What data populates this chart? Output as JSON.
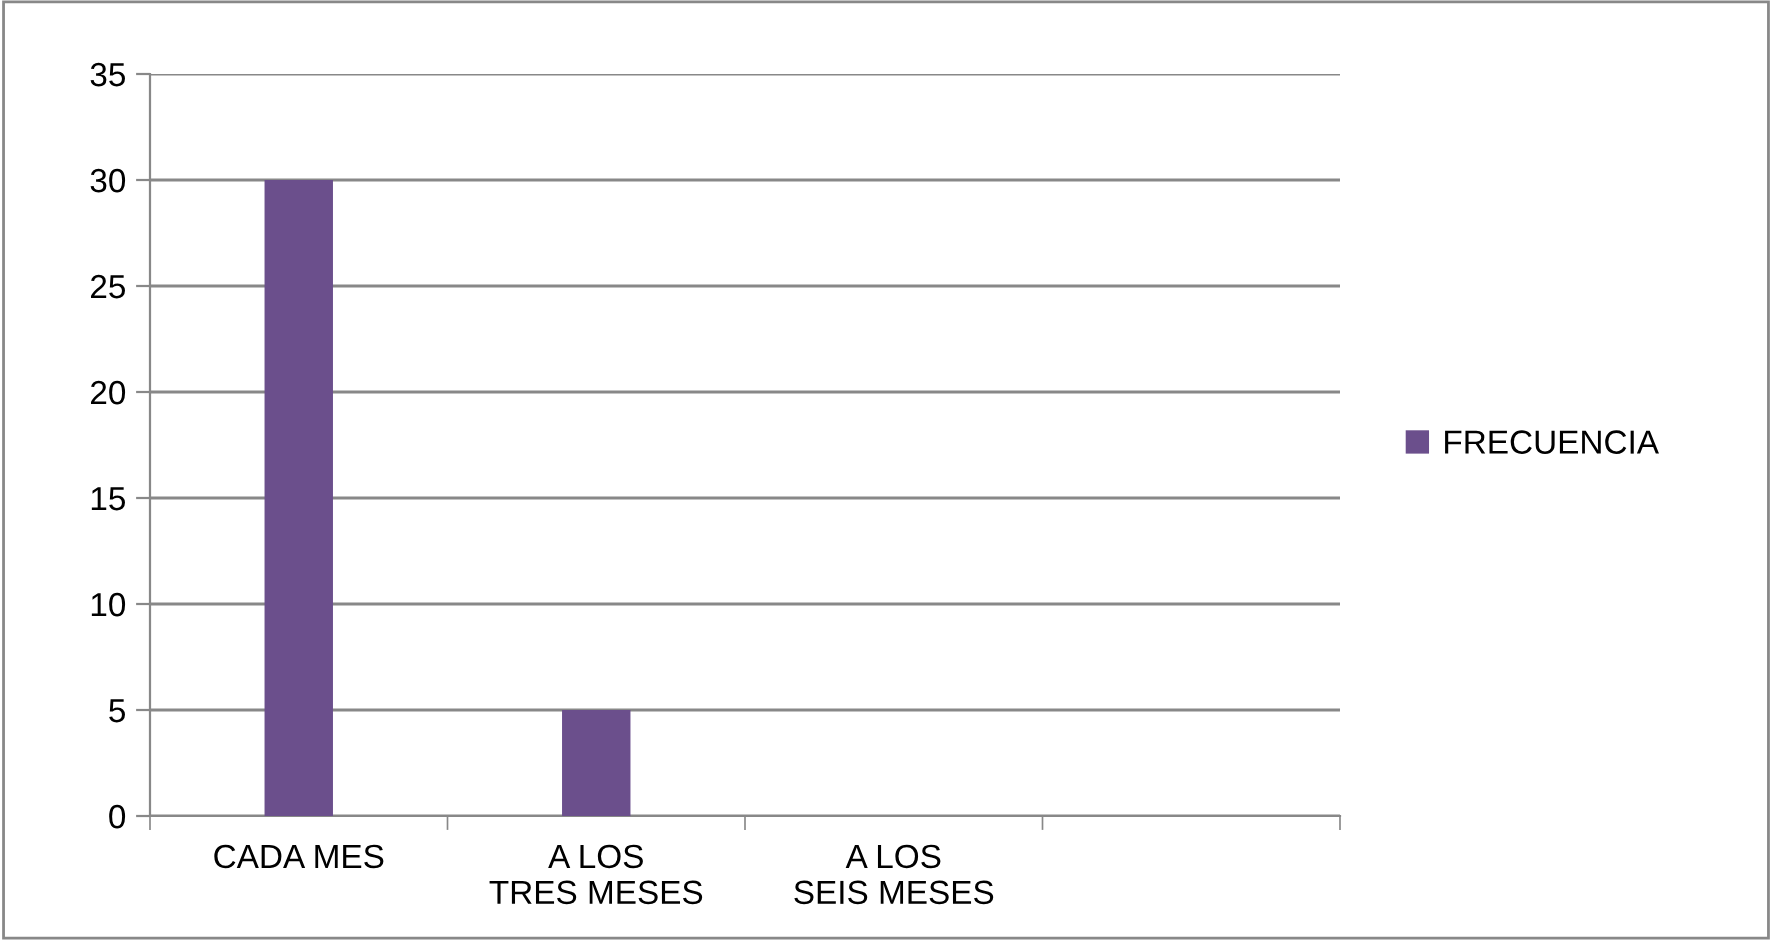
{
  "chart_data": {
    "type": "bar",
    "categories": [
      "CADA MES",
      "A LOS TRES MESES",
      "A LOS SEIS MESES",
      null
    ],
    "series": [
      {
        "name": "FRECUENCIA",
        "color": "#6b4f8c",
        "values": [
          30,
          5,
          null,
          null
        ]
      }
    ],
    "ylim": [
      0,
      35
    ],
    "yticks": [
      0,
      5,
      10,
      15,
      20,
      25,
      30,
      35
    ],
    "grid": "y",
    "legend": "right"
  }
}
